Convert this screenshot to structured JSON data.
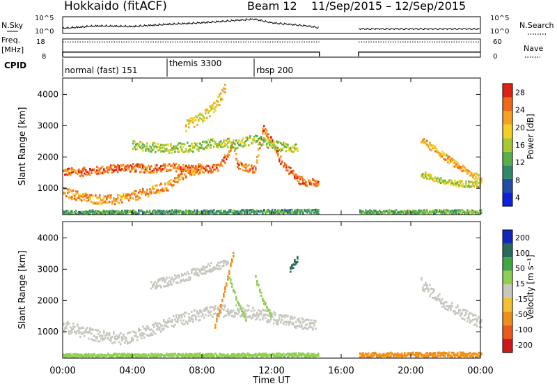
{
  "header": {
    "station": "Hokkaido (fitACF)",
    "beam_label": "Beam 12",
    "date_range": "11/Sep/2015 – 12/Sep/2015"
  },
  "top_panels": {
    "nsky_label": "N.Sky",
    "nsearch_label": "N.Search",
    "nsky_ticks": [
      "10^5",
      "10^0"
    ],
    "nsearch_ticks": [
      "10^5",
      "10^0"
    ],
    "freq_label": "Freq.",
    "freq_unit": "[MHz]",
    "freq_ticks": [
      "18",
      "8"
    ],
    "nave_label": "Nave",
    "nave_ticks": [
      "60",
      "0"
    ],
    "cpid_label": "CPID",
    "cpid_segments": [
      {
        "label": "normal (fast) 151",
        "start_h": 0,
        "end_h": 6
      },
      {
        "label": "themis 3300",
        "start_h": 6,
        "end_h": 11
      },
      {
        "label": "rbsp 200",
        "start_h": 11,
        "end_h": 24
      }
    ]
  },
  "x_axis": {
    "label": "Time UT",
    "ticks": [
      "00:00",
      "04:00",
      "08:00",
      "12:00",
      "16:00",
      "20:00",
      "00:00"
    ]
  },
  "y_axis_label": "Slant Range [km]",
  "y_ticks": [
    "1000",
    "2000",
    "3000",
    "4000"
  ],
  "power_colorbar": {
    "label": "Power [dB]",
    "ticks": [
      "4",
      "8",
      "12",
      "16",
      "20",
      "24",
      "28"
    ]
  },
  "velocity_colorbar": {
    "label": "Velocity [m s⁻¹]",
    "ticks": [
      "200",
      "100",
      "50",
      "15",
      "-15",
      "-50",
      "-100",
      "-200"
    ]
  },
  "colors": {
    "power_scale": [
      "#1020e0",
      "#1f4fa8",
      "#2e8a6a",
      "#58b048",
      "#a8c830",
      "#f4d020",
      "#f8a020",
      "#f06818",
      "#e02010"
    ],
    "velocity_scale": [
      "#d01818",
      "#f05818",
      "#f09018",
      "#f4c030",
      "#c8c8c0",
      "#90d050",
      "#40a840",
      "#2a6a5a",
      "#1028c0"
    ],
    "frame": "#000000"
  },
  "chart_data": [
    {
      "type": "line",
      "title": "N.Sky / N.Search",
      "x_range_h": [
        0,
        24
      ],
      "data_gap_h": [
        14.75,
        17
      ],
      "x": [
        0,
        2,
        4,
        6,
        8,
        10,
        11,
        12,
        14,
        14.75,
        17,
        20,
        24
      ],
      "values": [
        1.2,
        2.0,
        1.8,
        2.5,
        3.0,
        3.8,
        4.2,
        3.0,
        2.0,
        1.4,
        1.0,
        1.0,
        1.0
      ]
    },
    {
      "type": "line",
      "title": "Freq. / Nave",
      "x_range_h": [
        0,
        24
      ],
      "data_gap_h": [
        14.75,
        17
      ],
      "series": [
        {
          "name": "Freq.",
          "values": [
            10.5,
            10.5
          ]
        },
        {
          "name": "Nave",
          "values": [
            50,
            50
          ]
        }
      ]
    },
    {
      "type": "heatmap",
      "title": "Power [dB]",
      "x_range_h": [
        0,
        24
      ],
      "y_range_km": [
        180,
        4500
      ],
      "bands": [
        {
          "points": [
            [
              0,
              1550
            ],
            [
              1,
              1550
            ],
            [
              2,
              1600
            ],
            [
              3.5,
              1700
            ],
            [
              5,
              1650
            ],
            [
              6.5,
              1700
            ],
            [
              8,
              1600
            ],
            [
              9,
              1700
            ],
            [
              9.8,
              2500
            ],
            [
              10,
              1800
            ],
            [
              11,
              1600
            ],
            [
              11.5,
              3000
            ],
            [
              12.5,
              1900
            ],
            [
              13.5,
              1300
            ],
            [
              14.7,
              1150
            ]
          ],
          "width_km": 260,
          "level": 24
        },
        {
          "points": [
            [
              0,
              900
            ],
            [
              1.5,
              700
            ],
            [
              3,
              650
            ],
            [
              4.5,
              850
            ],
            [
              6,
              1100
            ],
            [
              7,
              1500
            ],
            [
              8,
              1700
            ]
          ],
          "width_km": 300,
          "level": 22
        },
        {
          "points": [
            [
              4,
              2400
            ],
            [
              6,
              2300
            ],
            [
              7.5,
              2350
            ],
            [
              9,
              2500
            ],
            [
              10,
              2450
            ],
            [
              11,
              2600
            ],
            [
              12,
              2400
            ],
            [
              13.5,
              2300
            ]
          ],
          "width_km": 300,
          "level": 14
        },
        {
          "points": [
            [
              7,
              3000
            ],
            [
              8,
              3300
            ],
            [
              8.8,
              3700
            ],
            [
              9.3,
              4200
            ]
          ],
          "width_km": 350,
          "level": 18
        },
        {
          "points": [
            [
              20.5,
              2600
            ],
            [
              21.5,
              2200
            ],
            [
              22.5,
              1800
            ],
            [
              24,
              1300
            ]
          ],
          "width_km": 220,
          "level": 20
        },
        {
          "points": [
            [
              20.5,
              1500
            ],
            [
              22,
              1200
            ],
            [
              24,
              1150
            ]
          ],
          "width_km": 200,
          "level": 16
        },
        {
          "points": [
            [
              0,
              260
            ],
            [
              7,
              270
            ],
            [
              14.7,
              290
            ]
          ],
          "width_km": 120,
          "level": 10
        },
        {
          "points": [
            [
              17,
              270
            ],
            [
              24,
              280
            ]
          ],
          "width_km": 120,
          "level": 12
        }
      ]
    },
    {
      "type": "heatmap",
      "title": "Velocity [m s⁻¹]",
      "x_range_h": [
        0,
        24
      ],
      "y_range_km": [
        180,
        4500
      ],
      "bands": [
        {
          "points": [
            [
              0,
              1200
            ],
            [
              2,
              900
            ],
            [
              3.5,
              800
            ],
            [
              5,
              1100
            ],
            [
              6.5,
              1400
            ],
            [
              8,
              1600
            ],
            [
              9,
              1700
            ],
            [
              10.5,
              1700
            ],
            [
              11,
              1600
            ],
            [
              12,
              1500
            ],
            [
              13.5,
              1300
            ],
            [
              14.5,
              1200
            ]
          ],
          "width_km": 380,
          "velocity": 0
        },
        {
          "points": [
            [
              5,
              2500
            ],
            [
              7,
              2800
            ],
            [
              8.5,
              3100
            ],
            [
              9.5,
              3200
            ]
          ],
          "width_km": 300,
          "velocity": 0
        },
        {
          "points": [
            [
              8.7,
              1200
            ],
            [
              9.2,
              2200
            ],
            [
              9.5,
              2900
            ],
            [
              9.8,
              3600
            ]
          ],
          "width_km": 160,
          "velocity": -60
        },
        {
          "points": [
            [
              9.5,
              2800
            ],
            [
              10,
              2000
            ],
            [
              10.5,
              1400
            ]
          ],
          "width_km": 140,
          "velocity": 40
        },
        {
          "points": [
            [
              11,
              2800
            ],
            [
              11.5,
              2000
            ],
            [
              12,
              1500
            ]
          ],
          "width_km": 150,
          "velocity": 40
        },
        {
          "points": [
            [
              13,
              3000
            ],
            [
              13.5,
              3400
            ]
          ],
          "width_km": 200,
          "velocity": 180
        },
        {
          "points": [
            [
              20.5,
              2600
            ],
            [
              22,
              1900
            ],
            [
              24,
              1300
            ]
          ],
          "width_km": 360,
          "velocity": 0
        },
        {
          "points": [
            [
              17,
              290
            ],
            [
              24,
              300
            ]
          ],
          "width_km": 150,
          "velocity": -60
        },
        {
          "points": [
            [
              0,
              270
            ],
            [
              14.7,
              290
            ]
          ],
          "width_km": 110,
          "velocity": 20
        }
      ]
    }
  ]
}
